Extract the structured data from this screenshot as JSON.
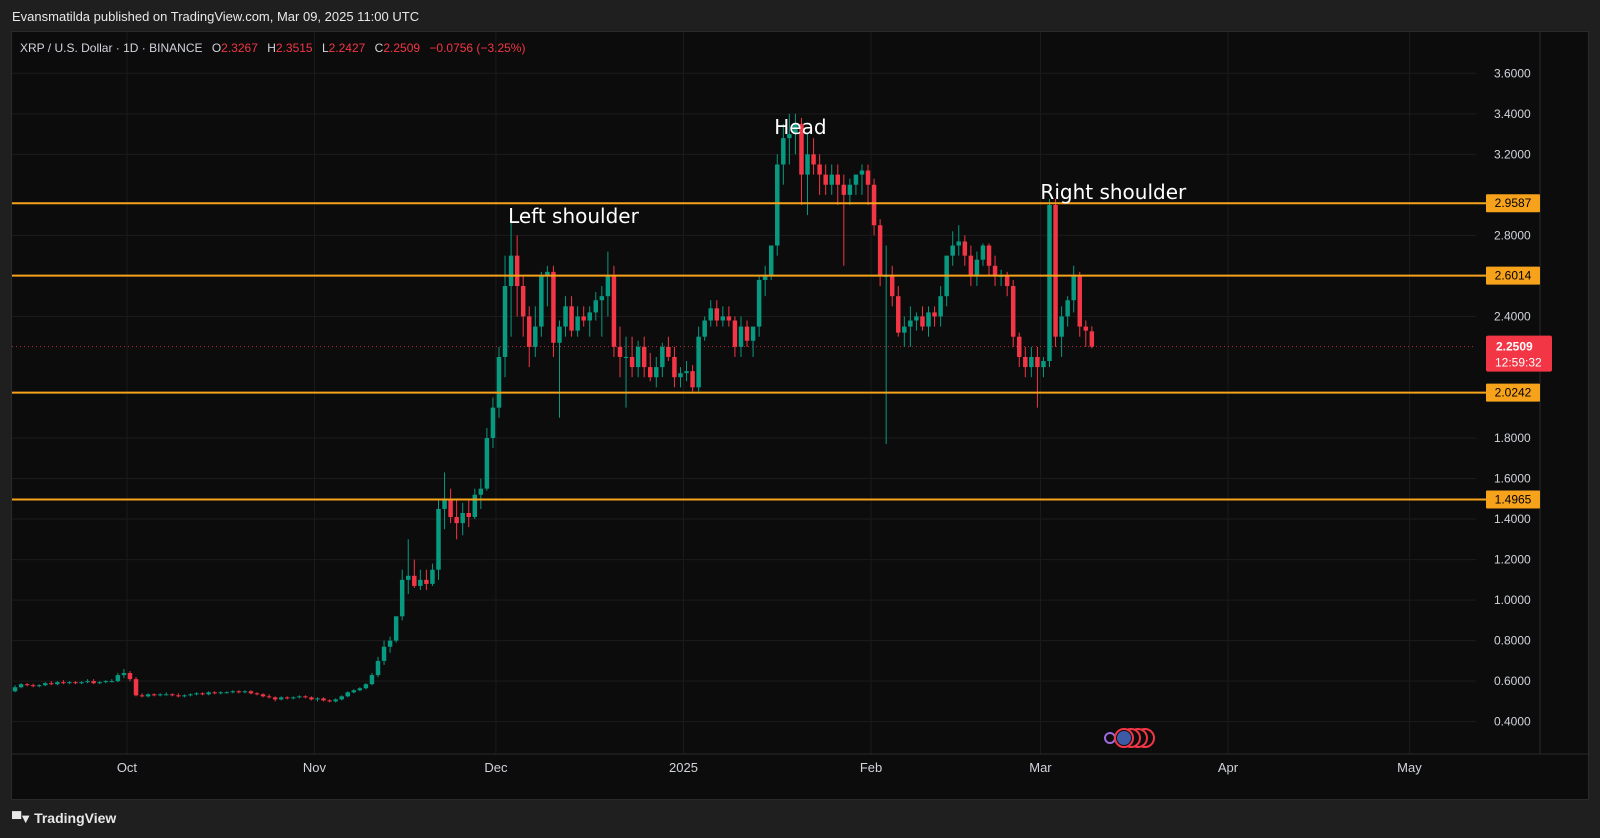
{
  "header": {
    "publisher": "Evansmatilda published on TradingView.com, Mar 09, 2025 11:00 UTC"
  },
  "legend": {
    "symbol": "XRP / U.S. Dollar · 1D · BINANCE",
    "o_label": "O",
    "o": "2.3267",
    "h_label": "H",
    "h": "2.3515",
    "l_label": "L",
    "l": "2.2427",
    "c_label": "C",
    "c": "2.2509",
    "change": "−0.0756 (−3.25%)"
  },
  "footer": {
    "brand": "TradingView",
    "logo_icon": "tradingview-logo-icon"
  },
  "colors": {
    "up": "#089981",
    "down": "#f23645",
    "level": "#f7a21b",
    "background": "#0c0c0c",
    "grid": "#1b1b1b",
    "price_tag": "#f23645"
  },
  "chart_data": {
    "type": "candlestick",
    "symbol": "XRP / U.S. Dollar",
    "interval": "1D",
    "exchange": "BINANCE",
    "x_axis": {
      "range": [
        "2024-09-12",
        "2025-05-12"
      ],
      "tick_labels": [
        {
          "date": "2024-10-01",
          "label": "Oct"
        },
        {
          "date": "2024-11-01",
          "label": "Nov"
        },
        {
          "date": "2024-12-01",
          "label": "Dec"
        },
        {
          "date": "2025-01-01",
          "label": "2025"
        },
        {
          "date": "2025-02-01",
          "label": "Feb"
        },
        {
          "date": "2025-03-01",
          "label": "Mar"
        },
        {
          "date": "2025-04-01",
          "label": "Apr"
        },
        {
          "date": "2025-05-01",
          "label": "May"
        }
      ]
    },
    "y_axis": {
      "range": [
        0.2405,
        3.8038
      ],
      "ticks": [
        "3.6000",
        "3.4000",
        "3.2000",
        "2.8000",
        "2.4000",
        "1.8000",
        "1.6000",
        "1.4000",
        "1.2000",
        "1.0000",
        "0.8000",
        "0.6000",
        "0.4000"
      ],
      "position": "right"
    },
    "horizontal_levels": [
      {
        "value": 2.9587,
        "label": "2.9587"
      },
      {
        "value": 2.6014,
        "label": "2.6014"
      },
      {
        "value": 2.0242,
        "label": "2.0242"
      },
      {
        "value": 1.4965,
        "label": "1.4965"
      }
    ],
    "current_price": {
      "value": 2.2509,
      "label": "2.2509",
      "countdown": "12:59:32"
    },
    "annotations": [
      {
        "text": "Left shoulder",
        "date": "2024-12-03",
        "price": 2.86
      },
      {
        "text": "Head",
        "date": "2025-01-16",
        "price": 3.3
      },
      {
        "text": "Right shoulder",
        "date": "2025-03-01",
        "price": 2.98
      }
    ],
    "candles": [
      [
        "2024-09-12",
        0.55,
        0.58,
        0.545,
        0.57
      ],
      [
        "2024-09-13",
        0.57,
        0.59,
        0.565,
        0.585
      ],
      [
        "2024-09-14",
        0.585,
        0.59,
        0.575,
        0.58
      ],
      [
        "2024-09-15",
        0.58,
        0.588,
        0.57,
        0.575
      ],
      [
        "2024-09-16",
        0.575,
        0.585,
        0.57,
        0.58
      ],
      [
        "2024-09-17",
        0.58,
        0.595,
        0.575,
        0.59
      ],
      [
        "2024-09-18",
        0.59,
        0.6,
        0.58,
        0.585
      ],
      [
        "2024-09-19",
        0.585,
        0.6,
        0.58,
        0.595
      ],
      [
        "2024-09-20",
        0.595,
        0.605,
        0.585,
        0.59
      ],
      [
        "2024-09-21",
        0.59,
        0.6,
        0.585,
        0.595
      ],
      [
        "2024-09-22",
        0.595,
        0.6,
        0.585,
        0.59
      ],
      [
        "2024-09-23",
        0.59,
        0.6,
        0.585,
        0.595
      ],
      [
        "2024-09-24",
        0.595,
        0.61,
        0.59,
        0.6
      ],
      [
        "2024-09-25",
        0.6,
        0.61,
        0.585,
        0.59
      ],
      [
        "2024-09-26",
        0.59,
        0.6,
        0.585,
        0.595
      ],
      [
        "2024-09-27",
        0.595,
        0.605,
        0.59,
        0.6
      ],
      [
        "2024-09-28",
        0.6,
        0.61,
        0.595,
        0.6
      ],
      [
        "2024-09-29",
        0.6,
        0.64,
        0.595,
        0.63
      ],
      [
        "2024-09-30",
        0.63,
        0.66,
        0.615,
        0.64
      ],
      [
        "2024-10-01",
        0.64,
        0.65,
        0.6,
        0.61
      ],
      [
        "2024-10-02",
        0.61,
        0.62,
        0.525,
        0.53
      ],
      [
        "2024-10-03",
        0.53,
        0.54,
        0.52,
        0.525
      ],
      [
        "2024-10-04",
        0.525,
        0.54,
        0.52,
        0.535
      ],
      [
        "2024-10-05",
        0.535,
        0.54,
        0.525,
        0.53
      ],
      [
        "2024-10-06",
        0.53,
        0.54,
        0.525,
        0.535
      ],
      [
        "2024-10-07",
        0.535,
        0.545,
        0.53,
        0.535
      ],
      [
        "2024-10-08",
        0.535,
        0.54,
        0.525,
        0.53
      ],
      [
        "2024-10-09",
        0.53,
        0.54,
        0.52,
        0.525
      ],
      [
        "2024-10-10",
        0.525,
        0.535,
        0.52,
        0.53
      ],
      [
        "2024-10-11",
        0.53,
        0.54,
        0.525,
        0.535
      ],
      [
        "2024-10-12",
        0.535,
        0.545,
        0.53,
        0.54
      ],
      [
        "2024-10-13",
        0.54,
        0.545,
        0.53,
        0.535
      ],
      [
        "2024-10-14",
        0.535,
        0.55,
        0.53,
        0.545
      ],
      [
        "2024-10-15",
        0.545,
        0.55,
        0.535,
        0.54
      ],
      [
        "2024-10-16",
        0.54,
        0.55,
        0.535,
        0.545
      ],
      [
        "2024-10-17",
        0.545,
        0.55,
        0.54,
        0.545
      ],
      [
        "2024-10-18",
        0.545,
        0.555,
        0.54,
        0.55
      ],
      [
        "2024-10-19",
        0.55,
        0.555,
        0.54,
        0.545
      ],
      [
        "2024-10-20",
        0.545,
        0.555,
        0.54,
        0.55
      ],
      [
        "2024-10-21",
        0.55,
        0.555,
        0.535,
        0.54
      ],
      [
        "2024-10-22",
        0.54,
        0.545,
        0.53,
        0.535
      ],
      [
        "2024-10-23",
        0.535,
        0.54,
        0.52,
        0.525
      ],
      [
        "2024-10-24",
        0.525,
        0.535,
        0.515,
        0.52
      ],
      [
        "2024-10-25",
        0.52,
        0.525,
        0.5,
        0.51
      ],
      [
        "2024-10-26",
        0.51,
        0.525,
        0.505,
        0.52
      ],
      [
        "2024-10-27",
        0.52,
        0.525,
        0.51,
        0.515
      ],
      [
        "2024-10-28",
        0.515,
        0.525,
        0.51,
        0.52
      ],
      [
        "2024-10-29",
        0.52,
        0.53,
        0.515,
        0.525
      ],
      [
        "2024-10-30",
        0.525,
        0.53,
        0.515,
        0.52
      ],
      [
        "2024-10-31",
        0.52,
        0.525,
        0.505,
        0.51
      ],
      [
        "2024-11-01",
        0.51,
        0.52,
        0.5,
        0.515
      ],
      [
        "2024-11-02",
        0.515,
        0.52,
        0.5,
        0.505
      ],
      [
        "2024-11-03",
        0.505,
        0.51,
        0.495,
        0.5
      ],
      [
        "2024-11-04",
        0.5,
        0.515,
        0.495,
        0.51
      ],
      [
        "2024-11-05",
        0.51,
        0.53,
        0.505,
        0.525
      ],
      [
        "2024-11-06",
        0.525,
        0.55,
        0.52,
        0.545
      ],
      [
        "2024-11-07",
        0.545,
        0.56,
        0.54,
        0.555
      ],
      [
        "2024-11-08",
        0.555,
        0.57,
        0.55,
        0.565
      ],
      [
        "2024-11-09",
        0.565,
        0.59,
        0.56,
        0.585
      ],
      [
        "2024-11-10",
        0.585,
        0.64,
        0.58,
        0.63
      ],
      [
        "2024-11-11",
        0.63,
        0.72,
        0.62,
        0.7
      ],
      [
        "2024-11-12",
        0.7,
        0.8,
        0.68,
        0.77
      ],
      [
        "2024-11-13",
        0.77,
        0.82,
        0.74,
        0.8
      ],
      [
        "2024-11-14",
        0.8,
        0.92,
        0.79,
        0.92
      ],
      [
        "2024-11-15",
        0.92,
        1.15,
        0.9,
        1.1
      ],
      [
        "2024-11-16",
        1.1,
        1.3,
        1.03,
        1.12
      ],
      [
        "2024-11-17",
        1.12,
        1.2,
        1.06,
        1.07
      ],
      [
        "2024-11-18",
        1.07,
        1.15,
        1.05,
        1.1
      ],
      [
        "2024-11-19",
        1.1,
        1.15,
        1.05,
        1.08
      ],
      [
        "2024-11-20",
        1.08,
        1.18,
        1.07,
        1.15
      ],
      [
        "2024-11-21",
        1.15,
        1.5,
        1.1,
        1.45
      ],
      [
        "2024-11-22",
        1.45,
        1.63,
        1.35,
        1.5
      ],
      [
        "2024-11-23",
        1.5,
        1.55,
        1.38,
        1.41
      ],
      [
        "2024-11-24",
        1.41,
        1.5,
        1.3,
        1.38
      ],
      [
        "2024-11-25",
        1.38,
        1.48,
        1.32,
        1.43
      ],
      [
        "2024-11-26",
        1.43,
        1.5,
        1.36,
        1.41
      ],
      [
        "2024-11-27",
        1.41,
        1.55,
        1.4,
        1.52
      ],
      [
        "2024-11-28",
        1.52,
        1.6,
        1.45,
        1.55
      ],
      [
        "2024-11-29",
        1.55,
        1.85,
        1.54,
        1.8
      ],
      [
        "2024-11-30",
        1.8,
        2.0,
        1.75,
        1.95
      ],
      [
        "2024-12-01",
        1.95,
        2.25,
        1.9,
        2.2
      ],
      [
        "2024-12-02",
        2.2,
        2.7,
        2.1,
        2.55
      ],
      [
        "2024-12-03",
        2.55,
        2.9,
        2.3,
        2.7
      ],
      [
        "2024-12-04",
        2.7,
        2.8,
        2.4,
        2.55
      ],
      [
        "2024-12-05",
        2.55,
        2.6,
        2.3,
        2.4
      ],
      [
        "2024-12-06",
        2.4,
        2.45,
        2.15,
        2.25
      ],
      [
        "2024-12-07",
        2.25,
        2.45,
        2.2,
        2.35
      ],
      [
        "2024-12-08",
        2.35,
        2.62,
        2.3,
        2.6
      ],
      [
        "2024-12-09",
        2.6,
        2.65,
        2.45,
        2.62
      ],
      [
        "2024-12-10",
        2.62,
        2.65,
        2.2,
        2.27
      ],
      [
        "2024-12-11",
        2.27,
        2.38,
        1.9,
        2.35
      ],
      [
        "2024-12-12",
        2.35,
        2.5,
        2.3,
        2.45
      ],
      [
        "2024-12-13",
        2.45,
        2.5,
        2.3,
        2.33
      ],
      [
        "2024-12-14",
        2.33,
        2.45,
        2.3,
        2.4
      ],
      [
        "2024-12-15",
        2.4,
        2.45,
        2.35,
        2.38
      ],
      [
        "2024-12-16",
        2.38,
        2.45,
        2.3,
        2.42
      ],
      [
        "2024-12-17",
        2.42,
        2.52,
        2.38,
        2.48
      ],
      [
        "2024-12-18",
        2.48,
        2.55,
        2.3,
        2.5
      ],
      [
        "2024-12-19",
        2.5,
        2.72,
        2.4,
        2.6
      ],
      [
        "2024-12-20",
        2.6,
        2.65,
        2.2,
        2.25
      ],
      [
        "2024-12-21",
        2.25,
        2.35,
        2.1,
        2.2
      ],
      [
        "2024-12-22",
        2.2,
        2.3,
        1.95,
        2.2
      ],
      [
        "2024-12-23",
        2.2,
        2.3,
        2.1,
        2.15
      ],
      [
        "2024-12-24",
        2.15,
        2.28,
        2.1,
        2.25
      ],
      [
        "2024-12-25",
        2.25,
        2.3,
        2.1,
        2.15
      ],
      [
        "2024-12-26",
        2.15,
        2.22,
        2.08,
        2.1
      ],
      [
        "2024-12-27",
        2.1,
        2.2,
        2.05,
        2.15
      ],
      [
        "2024-12-28",
        2.15,
        2.27,
        2.1,
        2.25
      ],
      [
        "2024-12-29",
        2.25,
        2.3,
        2.18,
        2.2
      ],
      [
        "2024-12-30",
        2.2,
        2.25,
        2.05,
        2.1
      ],
      [
        "2024-12-31",
        2.1,
        2.15,
        2.05,
        2.12
      ],
      [
        "2025-01-01",
        2.12,
        2.18,
        2.08,
        2.13
      ],
      [
        "2025-01-02",
        2.13,
        2.16,
        2.03,
        2.05
      ],
      [
        "2025-01-03",
        2.05,
        2.35,
        2.03,
        2.3
      ],
      [
        "2025-01-04",
        2.3,
        2.4,
        2.28,
        2.38
      ],
      [
        "2025-01-05",
        2.38,
        2.48,
        2.35,
        2.44
      ],
      [
        "2025-01-06",
        2.44,
        2.48,
        2.35,
        2.38
      ],
      [
        "2025-01-07",
        2.38,
        2.45,
        2.35,
        2.4
      ],
      [
        "2025-01-08",
        2.4,
        2.45,
        2.35,
        2.38
      ],
      [
        "2025-01-09",
        2.38,
        2.4,
        2.2,
        2.25
      ],
      [
        "2025-01-10",
        2.25,
        2.4,
        2.2,
        2.35
      ],
      [
        "2025-01-11",
        2.35,
        2.38,
        2.25,
        2.28
      ],
      [
        "2025-01-12",
        2.28,
        2.35,
        2.2,
        2.35
      ],
      [
        "2025-01-13",
        2.35,
        2.6,
        2.3,
        2.58
      ],
      [
        "2025-01-14",
        2.58,
        2.65,
        2.5,
        2.6
      ],
      [
        "2025-01-15",
        2.6,
        2.75,
        2.58,
        2.75
      ],
      [
        "2025-01-16",
        2.75,
        3.2,
        2.7,
        3.15
      ],
      [
        "2025-01-17",
        3.15,
        3.35,
        3.05,
        3.28
      ],
      [
        "2025-01-18",
        3.28,
        3.4,
        3.15,
        3.3
      ],
      [
        "2025-01-19",
        3.3,
        3.4,
        3.2,
        3.35
      ],
      [
        "2025-01-20",
        3.35,
        3.38,
        2.95,
        3.1
      ],
      [
        "2025-01-21",
        3.1,
        3.3,
        2.9,
        3.2
      ],
      [
        "2025-01-22",
        3.2,
        3.28,
        3.1,
        3.15
      ],
      [
        "2025-01-23",
        3.15,
        3.2,
        3.0,
        3.1
      ],
      [
        "2025-01-24",
        3.1,
        3.15,
        3.0,
        3.05
      ],
      [
        "2025-01-25",
        3.05,
        3.15,
        3.0,
        3.1
      ],
      [
        "2025-01-26",
        3.1,
        3.15,
        2.95,
        3.05
      ],
      [
        "2025-01-27",
        3.05,
        3.1,
        2.65,
        3.0
      ],
      [
        "2025-01-28",
        3.0,
        3.08,
        2.95,
        3.05
      ],
      [
        "2025-01-29",
        3.05,
        3.1,
        3.0,
        3.1
      ],
      [
        "2025-01-30",
        3.1,
        3.15,
        3.0,
        3.12
      ],
      [
        "2025-01-31",
        3.12,
        3.15,
        2.95,
        3.05
      ],
      [
        "2025-02-01",
        3.05,
        3.08,
        2.8,
        2.85
      ],
      [
        "2025-02-02",
        2.85,
        2.88,
        2.55,
        2.6
      ],
      [
        "2025-02-03",
        2.6,
        2.75,
        1.77,
        2.6
      ],
      [
        "2025-02-04",
        2.6,
        2.65,
        2.45,
        2.5
      ],
      [
        "2025-02-05",
        2.5,
        2.55,
        2.3,
        2.32
      ],
      [
        "2025-02-06",
        2.32,
        2.4,
        2.25,
        2.35
      ],
      [
        "2025-02-07",
        2.35,
        2.45,
        2.25,
        2.38
      ],
      [
        "2025-02-08",
        2.38,
        2.42,
        2.33,
        2.4
      ],
      [
        "2025-02-09",
        2.4,
        2.45,
        2.33,
        2.35
      ],
      [
        "2025-02-10",
        2.35,
        2.45,
        2.3,
        2.42
      ],
      [
        "2025-02-11",
        2.42,
        2.45,
        2.35,
        2.4
      ],
      [
        "2025-02-12",
        2.4,
        2.55,
        2.35,
        2.5
      ],
      [
        "2025-02-13",
        2.5,
        2.7,
        2.45,
        2.7
      ],
      [
        "2025-02-14",
        2.7,
        2.82,
        2.65,
        2.75
      ],
      [
        "2025-02-15",
        2.75,
        2.85,
        2.7,
        2.77
      ],
      [
        "2025-02-16",
        2.77,
        2.8,
        2.65,
        2.7
      ],
      [
        "2025-02-17",
        2.7,
        2.75,
        2.55,
        2.6
      ],
      [
        "2025-02-18",
        2.6,
        2.72,
        2.55,
        2.68
      ],
      [
        "2025-02-19",
        2.68,
        2.76,
        2.65,
        2.75
      ],
      [
        "2025-02-20",
        2.75,
        2.76,
        2.6,
        2.65
      ],
      [
        "2025-02-21",
        2.65,
        2.7,
        2.55,
        2.6
      ],
      [
        "2025-02-22",
        2.6,
        2.63,
        2.55,
        2.6
      ],
      [
        "2025-02-23",
        2.6,
        2.62,
        2.5,
        2.55
      ],
      [
        "2025-02-24",
        2.55,
        2.58,
        2.25,
        2.3
      ],
      [
        "2025-02-25",
        2.3,
        2.32,
        2.15,
        2.2
      ],
      [
        "2025-02-26",
        2.2,
        2.25,
        2.1,
        2.15
      ],
      [
        "2025-02-27",
        2.15,
        2.25,
        2.1,
        2.2
      ],
      [
        "2025-02-28",
        2.2,
        2.25,
        1.95,
        2.15
      ],
      [
        "2025-03-01",
        2.15,
        2.2,
        2.1,
        2.18
      ],
      [
        "2025-03-02",
        2.18,
        2.98,
        2.15,
        2.95
      ],
      [
        "2025-03-03",
        2.95,
        2.98,
        2.25,
        2.3
      ],
      [
        "2025-03-04",
        2.3,
        2.45,
        2.2,
        2.4
      ],
      [
        "2025-03-05",
        2.4,
        2.5,
        2.35,
        2.48
      ],
      [
        "2025-03-06",
        2.48,
        2.65,
        2.42,
        2.6
      ],
      [
        "2025-03-07",
        2.6,
        2.62,
        2.3,
        2.35
      ],
      [
        "2025-03-08",
        2.35,
        2.38,
        2.25,
        2.33
      ],
      [
        "2025-03-09",
        2.3267,
        2.3515,
        2.2427,
        2.2509
      ]
    ]
  }
}
